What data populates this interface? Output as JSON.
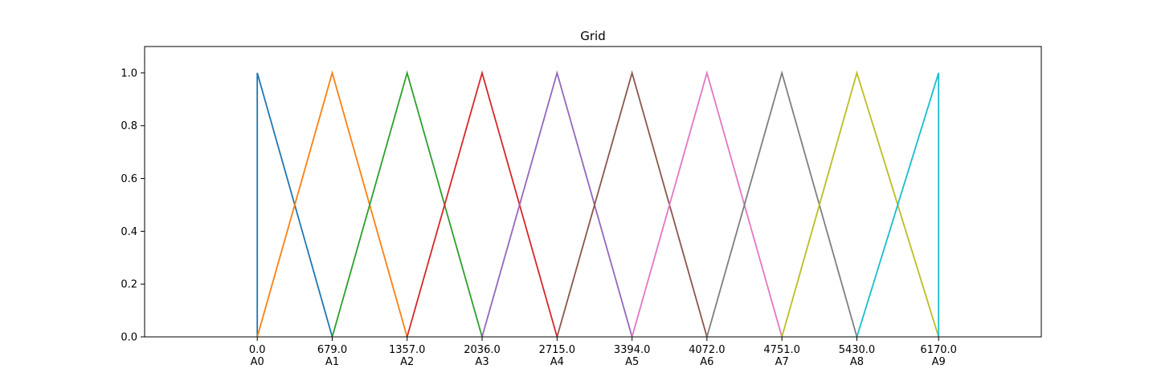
{
  "chart_data": {
    "type": "line",
    "title": "Grid",
    "xlabel": "",
    "ylabel": "",
    "xlim": [
      -1020,
      7100
    ],
    "ylim": [
      0,
      1.1
    ],
    "grid": false,
    "legend": "none",
    "x_ticks": [
      {
        "value": 0.0,
        "label": "0.0",
        "sublabel": "A0"
      },
      {
        "value": 679.0,
        "label": "679.0",
        "sublabel": "A1"
      },
      {
        "value": 1357.0,
        "label": "1357.0",
        "sublabel": "A2"
      },
      {
        "value": 2036.0,
        "label": "2036.0",
        "sublabel": "A3"
      },
      {
        "value": 2715.0,
        "label": "2715.0",
        "sublabel": "A4"
      },
      {
        "value": 3394.0,
        "label": "3394.0",
        "sublabel": "A5"
      },
      {
        "value": 4072.0,
        "label": "4072.0",
        "sublabel": "A6"
      },
      {
        "value": 4751.0,
        "label": "4751.0",
        "sublabel": "A7"
      },
      {
        "value": 5430.0,
        "label": "5430.0",
        "sublabel": "A8"
      },
      {
        "value": 6170.0,
        "label": "6170.0",
        "sublabel": "A9"
      }
    ],
    "y_ticks": [
      {
        "value": 0.0,
        "label": "0.0"
      },
      {
        "value": 0.2,
        "label": "0.2"
      },
      {
        "value": 0.4,
        "label": "0.4"
      },
      {
        "value": 0.6,
        "label": "0.6"
      },
      {
        "value": 0.8,
        "label": "0.8"
      },
      {
        "value": 1.0,
        "label": "1.0"
      }
    ],
    "series": [
      {
        "color": "#1f77b4",
        "x": [
          0.0,
          0.0,
          679.0
        ],
        "y": [
          0,
          1,
          0
        ]
      },
      {
        "color": "#ff7f0e",
        "x": [
          0.0,
          679.0,
          1357.0
        ],
        "y": [
          0,
          1,
          0
        ]
      },
      {
        "color": "#2ca02c",
        "x": [
          679.0,
          1357.0,
          2036.0
        ],
        "y": [
          0,
          1,
          0
        ]
      },
      {
        "color": "#d62728",
        "x": [
          1357.0,
          2036.0,
          2715.0
        ],
        "y": [
          0,
          1,
          0
        ]
      },
      {
        "color": "#9467bd",
        "x": [
          2036.0,
          2715.0,
          3394.0
        ],
        "y": [
          0,
          1,
          0
        ]
      },
      {
        "color": "#8c564b",
        "x": [
          2715.0,
          3394.0,
          4072.0
        ],
        "y": [
          0,
          1,
          0
        ]
      },
      {
        "color": "#e377c2",
        "x": [
          3394.0,
          4072.0,
          4751.0
        ],
        "y": [
          0,
          1,
          0
        ]
      },
      {
        "color": "#7f7f7f",
        "x": [
          4072.0,
          4751.0,
          5430.0
        ],
        "y": [
          0,
          1,
          0
        ]
      },
      {
        "color": "#bcbd22",
        "x": [
          4751.0,
          5430.0,
          6170.0
        ],
        "y": [
          0,
          1,
          0
        ]
      },
      {
        "color": "#17becf",
        "x": [
          5430.0,
          6170.0,
          6170.0
        ],
        "y": [
          0,
          1,
          0
        ]
      }
    ]
  }
}
